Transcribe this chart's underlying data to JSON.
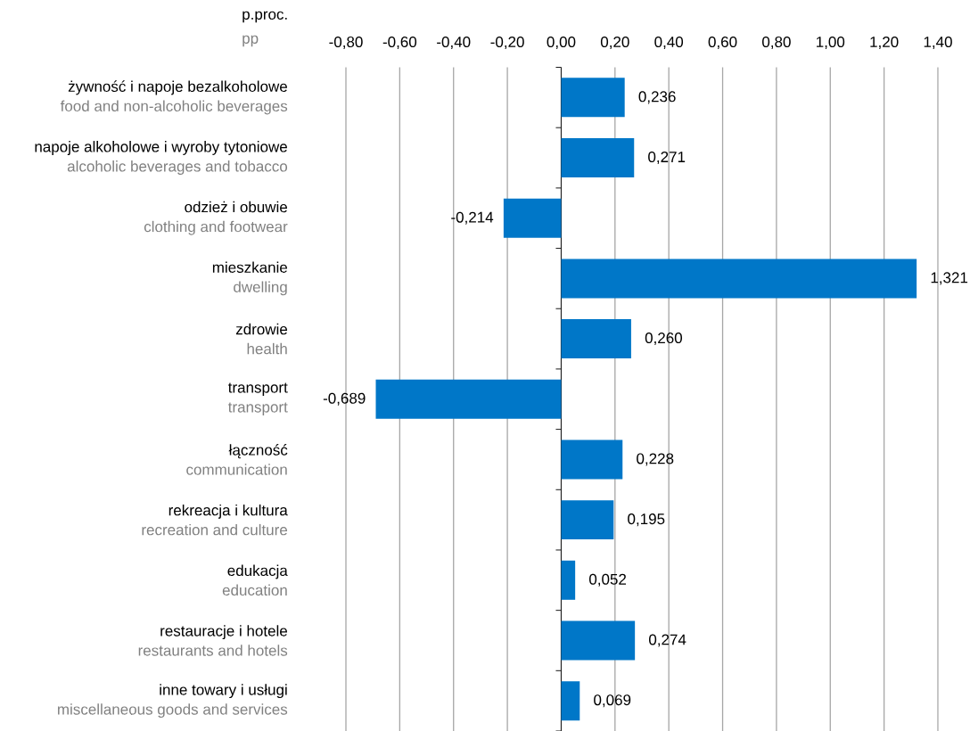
{
  "chart_data": {
    "type": "bar",
    "orientation": "horizontal",
    "xlabel": "p.proc.",
    "annotations": [
      "pp"
    ],
    "categories": [
      "żywność i napoje bezalkoholowe",
      "napoje alkoholowe i wyroby tytoniowe",
      "odzież i obuwie",
      "mieszkanie",
      "zdrowie",
      "transport",
      "łączność",
      "rekreacja i kultura",
      "edukacja",
      "restauracje i hotele",
      "inne towary i usługi"
    ],
    "y2_categories": [
      "food and non-alcoholic beverages",
      "alcoholic beverages and tobacco",
      "clothing and footwear",
      "dwelling",
      "health",
      "transport",
      "communication",
      "recreation and culture",
      "education",
      "restaurants and hotels",
      "miscellaneous goods and services"
    ],
    "values": [
      0.236,
      0.271,
      -0.214,
      1.321,
      0.26,
      -0.689,
      0.228,
      0.195,
      0.052,
      0.274,
      0.069
    ],
    "value_labels": [
      "0,236",
      "0,271",
      "-0,214",
      "1,321",
      "0,260",
      "-0,689",
      "0,228",
      "0,195",
      "0,052",
      "0,274",
      "0,069"
    ],
    "color": "#0077c8",
    "xlim": [
      -0.8,
      1.4
    ],
    "xticks": [
      {
        "value": -0.8,
        "label": "-0,80"
      },
      {
        "value": -0.6,
        "label": "-0,60"
      },
      {
        "value": -0.4,
        "label": "-0,40"
      },
      {
        "value": -0.2,
        "label": "-0,20"
      },
      {
        "value": 0,
        "label": "0,00"
      },
      {
        "value": 0.2,
        "label": "0,20"
      },
      {
        "value": 0.4,
        "label": "0,40"
      },
      {
        "value": 0.6,
        "label": "0,60"
      },
      {
        "value": 0.8,
        "label": "0,80"
      },
      {
        "value": 1.0,
        "label": "1,00"
      },
      {
        "value": 1.2,
        "label": "1,20"
      },
      {
        "value": 1.4,
        "label": "1,40"
      }
    ],
    "grid": "x"
  }
}
